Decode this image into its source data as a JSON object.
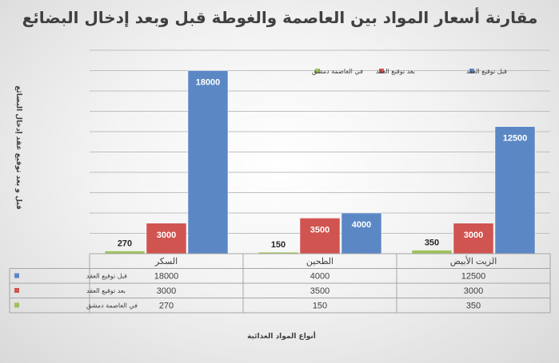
{
  "chart_data": {
    "type": "bar",
    "title": "مقارنة أسعار المواد بين العاصمة والغوطة قبل وبعد إدخال البضائع",
    "xlabel": "أنواع المواد الغذائية",
    "ylabel": "قبل و بعد توقيع عقد إدخال البضائع",
    "categories": [
      "الزيت الأبيض",
      "الطحين",
      "السكر"
    ],
    "ylim": [
      0,
      20000
    ],
    "grid": true,
    "legend_position": "top-right",
    "series": [
      {
        "name": "قبل توقيع العقد",
        "values": [
          12500,
          4000,
          18000
        ],
        "color": "#5b87c5"
      },
      {
        "name": "بعد توقيع العقد",
        "values": [
          3000,
          3500,
          3000
        ],
        "color": "#d05450"
      },
      {
        "name": "في العاصمة دمشق",
        "values": [
          350,
          150,
          270
        ],
        "color": "#9fc15a"
      }
    ],
    "data_table": true
  }
}
